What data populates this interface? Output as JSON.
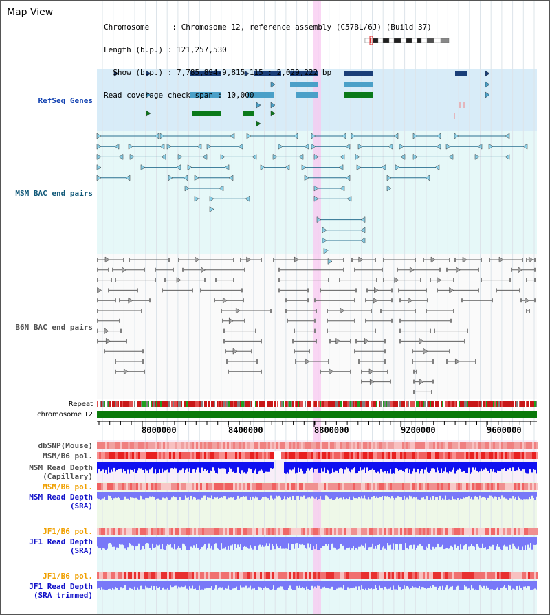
{
  "title": "Map View",
  "info": {
    "line1": "Chromosome     : Chromosome 12, reference assembly (C57BL/6J) (Build 37)",
    "line2": "Length (b.p.) : 121,257,530",
    "line3": "  Show (b.p.) : 7,785,894-9,815,115 : 2,029,222 bp",
    "line4": "Read coverage check span : 10,000"
  },
  "tracks": {
    "refseq": "RefSeq Genes",
    "msm_bac": "MSM BAC end pairs",
    "b6n_bac": "B6N BAC end pairs",
    "repeat": "Repeat",
    "chromosome": "chromosome 12",
    "dbsnp": "dbSNP(Mouse)",
    "msm_pol": "MSM/B6 pol.",
    "msm_depth_cap_1": "MSM Read Depth",
    "msm_depth_cap_2": "(Capillary)",
    "msm_pol_2": "MSM/B6 pol.",
    "msm_depth_sra_1": "MSM Read Depth",
    "msm_depth_sra_2": "(SRA)",
    "jf1_pol": "JF1/B6 pol.",
    "jf1_depth_sra_1": "JF1 Read Depth",
    "jf1_depth_sra_2": "(SRA)",
    "jf1_pol_2": "JF1/B6 pol.",
    "jf1_depth_trim_1": "JF1 Read Depth",
    "jf1_depth_trim_2": "(SRA trimmed)"
  },
  "axis": {
    "ticks": [
      "8000000",
      "8400000",
      "8800000",
      "9200000",
      "9600000"
    ]
  },
  "colors": {
    "refseq_bg": "#d8ecf8",
    "bac_bg": "#e6f8f8",
    "highlight": "#f8c8f0",
    "gene_dark": "#1a3e78",
    "gene_mid": "#4aa0c8",
    "gene_green": "#0a7a1a",
    "chromosome": "#0a7a0a",
    "depth_blue": "#1010f0",
    "depth_light": "#7878f8"
  }
}
